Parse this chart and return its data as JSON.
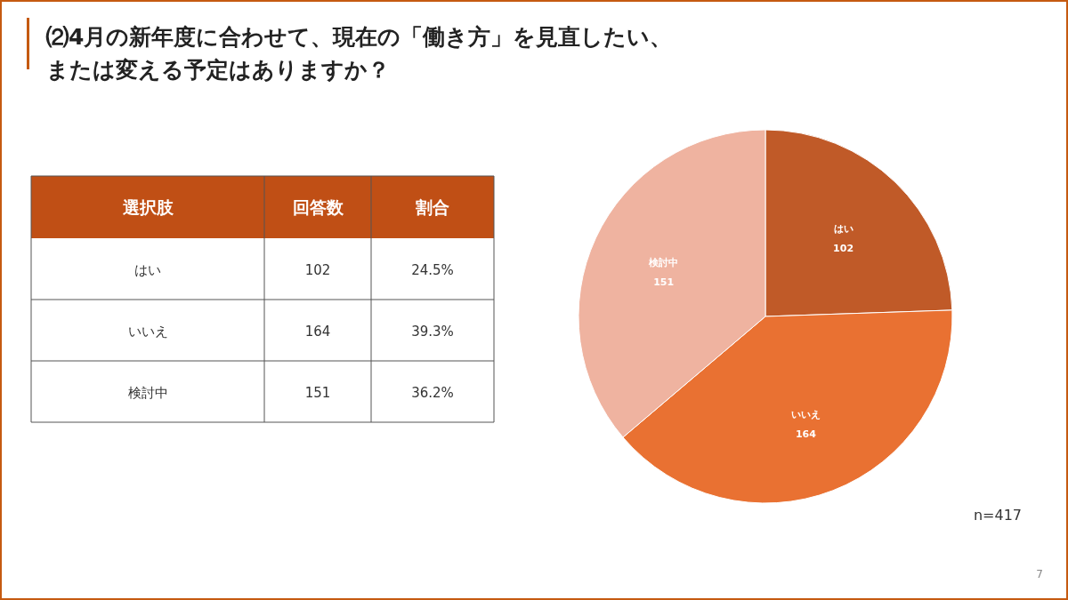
{
  "chart_data": [
    {
      "type": "pie",
      "title": "⑵4月の新年度に合わせて、現在の「働き方」を見直したい、または変える予定はありますか？",
      "categories": [
        "はい",
        "いいえ",
        "検討中"
      ],
      "values": [
        102,
        164,
        151
      ],
      "colors": [
        "#c05a28",
        "#e97132",
        "#efb3a0"
      ],
      "data_labels": true,
      "annotations": [
        "n=417",
        "7"
      ]
    },
    {
      "type": "other",
      "xlabel": "選択肢",
      "categories": [
        "はい",
        "いいえ",
        "検討中"
      ],
      "series": [
        {
          "name": "回答数",
          "values": [
            102,
            164,
            151
          ]
        },
        {
          "name": "割合",
          "values": [
            24.5,
            39.3,
            36.2
          ],
          "value_labels": [
            "24.5%",
            "39.3%",
            "36.2%"
          ]
        }
      ],
      "data_labels": true
    }
  ]
}
